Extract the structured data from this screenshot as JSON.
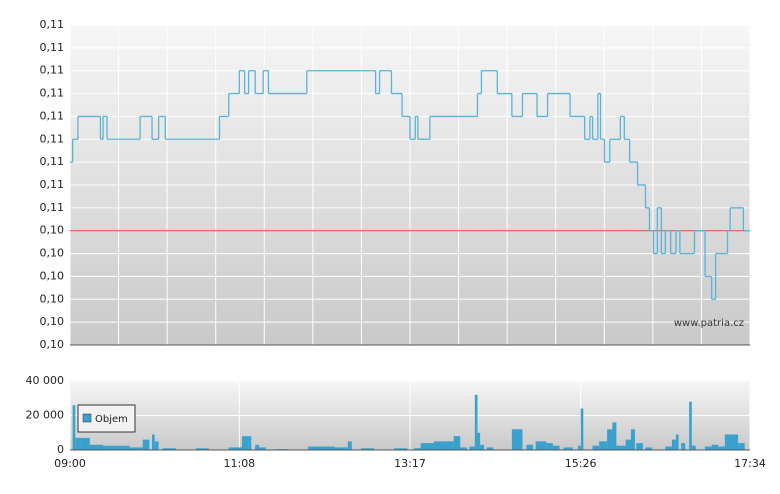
{
  "chart_data": [
    {
      "type": "line",
      "xlim": [
        0,
        514
      ],
      "ylim": [
        0.102,
        0.109
      ],
      "yticks": [
        {
          "value": 0.102,
          "label": "0,10"
        },
        {
          "value": 0.1025,
          "label": "0,10"
        },
        {
          "value": 0.103,
          "label": "0,10"
        },
        {
          "value": 0.1035,
          "label": "0,10"
        },
        {
          "value": 0.104,
          "label": "0,10"
        },
        {
          "value": 0.1045,
          "label": "0,10"
        },
        {
          "value": 0.105,
          "label": "0,11"
        },
        {
          "value": 0.1055,
          "label": "0,11"
        },
        {
          "value": 0.106,
          "label": "0,11"
        },
        {
          "value": 0.1065,
          "label": "0,11"
        },
        {
          "value": 0.107,
          "label": "0,11"
        },
        {
          "value": 0.1075,
          "label": "0,11"
        },
        {
          "value": 0.108,
          "label": "0,11"
        },
        {
          "value": 0.1085,
          "label": "0,11"
        },
        {
          "value": 0.109,
          "label": "0,11"
        }
      ],
      "grid": true,
      "step": true,
      "reference": 0.1045,
      "reference_color": "#e8402a",
      "watermark": "www.patria.cz",
      "x": [
        0,
        2,
        6,
        23,
        25,
        28,
        53,
        62,
        67,
        72,
        113,
        120,
        128,
        132,
        135,
        140,
        146,
        150,
        179,
        231,
        234,
        243,
        251,
        257,
        261,
        263,
        272,
        308,
        311,
        323,
        334,
        342,
        353,
        361,
        378,
        389,
        393,
        395,
        399,
        401,
        404,
        408,
        416,
        419,
        423,
        429,
        435,
        438,
        441,
        444,
        447,
        450,
        454,
        458,
        461,
        472,
        480,
        485,
        488,
        497,
        499,
        509
      ],
      "series": [
        {
          "color": "#5ab4d9",
          "values": [
            0.106,
            0.1065,
            0.107,
            0.1065,
            0.107,
            0.1065,
            0.107,
            0.1065,
            0.107,
            0.1065,
            0.107,
            0.1075,
            0.108,
            0.1075,
            0.108,
            0.1075,
            0.108,
            0.1075,
            0.108,
            0.1075,
            0.108,
            0.1075,
            0.107,
            0.1065,
            0.107,
            0.1065,
            0.107,
            0.1075,
            0.108,
            0.1075,
            0.107,
            0.1075,
            0.107,
            0.1075,
            0.107,
            0.1065,
            0.107,
            0.1065,
            0.1075,
            0.1065,
            0.106,
            0.1065,
            0.107,
            0.1065,
            0.106,
            0.1055,
            0.105,
            0.1045,
            0.104,
            0.105,
            0.104,
            0.1045,
            0.104,
            0.1045,
            0.104,
            0.1045,
            0.1035,
            0.103,
            0.104,
            0.1045,
            0.105,
            0.1045
          ]
        }
      ]
    },
    {
      "type": "bar",
      "xlim": [
        0,
        514
      ],
      "xticks": [
        {
          "value": 0,
          "label": "09:00"
        },
        {
          "value": 128,
          "label": "11:08"
        },
        {
          "value": 257,
          "label": "13:17"
        },
        {
          "value": 386,
          "label": "15:26"
        },
        {
          "value": 514,
          "label": "17:34"
        }
      ],
      "ylim": [
        0,
        40000
      ],
      "yticks": [
        {
          "value": 0,
          "label": "0"
        },
        {
          "value": 20000,
          "label": "20 000"
        },
        {
          "value": 40000,
          "label": "40 000"
        }
      ],
      "grid": true,
      "legend": "top-left",
      "x": [
        2,
        4,
        8,
        15,
        25,
        35,
        45,
        55,
        62,
        64,
        70,
        95,
        120,
        130,
        135,
        140,
        143,
        155,
        180,
        190,
        200,
        210,
        220,
        245,
        260,
        265,
        275,
        290,
        295,
        302,
        306,
        308,
        310,
        315,
        334,
        345,
        352,
        360,
        365,
        373,
        384,
        386,
        395,
        400,
        406,
        410,
        413,
        420,
        424,
        428,
        435,
        450,
        455,
        458,
        462,
        468,
        470,
        480,
        485,
        490,
        495,
        500,
        505
      ],
      "x_end": [
        4,
        8,
        15,
        25,
        35,
        45,
        55,
        60,
        64,
        67,
        80,
        105,
        130,
        135,
        137,
        143,
        148,
        165,
        190,
        200,
        210,
        213,
        230,
        255,
        265,
        275,
        290,
        295,
        300,
        306,
        308,
        310,
        313,
        320,
        342,
        350,
        360,
        365,
        370,
        380,
        386,
        388,
        400,
        406,
        410,
        413,
        420,
        424,
        427,
        433,
        440,
        455,
        458,
        460,
        465,
        470,
        473,
        485,
        490,
        495,
        500,
        505,
        510
      ],
      "series": [
        {
          "name": "Objem",
          "color": "#3aa0cc",
          "values": [
            26000,
            7000,
            7000,
            3000,
            2500,
            2500,
            1500,
            6000,
            9000,
            5000,
            1000,
            1000,
            1500,
            8000,
            8000,
            3000,
            1500,
            500,
            2000,
            2000,
            1500,
            5000,
            1000,
            1000,
            1000,
            4000,
            5000,
            8000,
            1500,
            2000,
            32000,
            10000,
            3000,
            1500,
            12000,
            3000,
            5000,
            4000,
            2500,
            1500,
            2500,
            24000,
            2500,
            5000,
            12000,
            16000,
            2500,
            6000,
            12000,
            4000,
            1500,
            2000,
            6000,
            9000,
            4000,
            28000,
            2500,
            2000,
            3000,
            2000,
            9000,
            9000,
            4000
          ]
        }
      ]
    }
  ]
}
